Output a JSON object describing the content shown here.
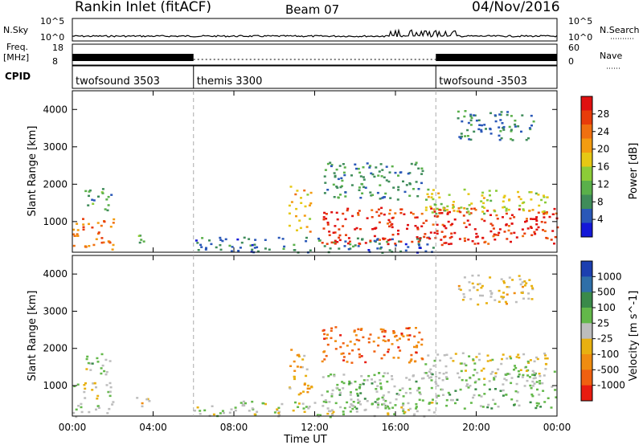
{
  "header": {
    "station": "Rankin Inlet (fitACF)",
    "beam": "Beam 07",
    "date": "04/Nov/2016"
  },
  "strip": {
    "nsky_label": "N.Sky",
    "nsky_ticks": [
      "10^5",
      "10^0"
    ],
    "nsearch_label": "N.Search",
    "nsearch_ticks": [
      "10^5",
      "10^0"
    ],
    "freq_label": "Freq.",
    "freq_unit": "[MHz]",
    "freq_ticks": [
      "18",
      "8"
    ],
    "nave_label": "Nave",
    "nave_ticks": [
      "60",
      "0"
    ],
    "cpid_label": "CPID",
    "cpid_segments": [
      {
        "name": "twofsound 3503",
        "start_hour": 0,
        "end_hour": 6
      },
      {
        "name": "themis 3300",
        "start_hour": 6,
        "end_hour": 18
      },
      {
        "name": "twofsound -3503",
        "start_hour": 18,
        "end_hour": 24
      }
    ]
  },
  "colors": {
    "power": [
      "#1418d8",
      "#2a58b8",
      "#3f8c5a",
      "#5ab04a",
      "#8ccc38",
      "#e6c814",
      "#f39c10",
      "#f07010",
      "#e83c0a",
      "#e01010"
    ],
    "velocity": [
      "#1c3fb0",
      "#2f6fa8",
      "#3a8a4a",
      "#63b84a",
      "#bdbdbd",
      "#e8b010",
      "#f08c10",
      "#f06010",
      "#e81c10"
    ]
  },
  "chart_data": [
    {
      "type": "heatmap",
      "title": "Power",
      "xlabel": "Time UT",
      "ylabel": "Slant Range [km]",
      "xlim": [
        0,
        24
      ],
      "ylim": [
        180,
        4500
      ],
      "x_ticks": [
        "00:00",
        "04:00",
        "08:00",
        "12:00",
        "16:00",
        "20:00",
        "00:00"
      ],
      "y_ticks": [
        1000,
        2000,
        3000,
        4000
      ],
      "colorbar": {
        "label": "Power [dB]",
        "ticks": [
          "28",
          "24",
          "20",
          "16",
          "12",
          "8",
          "4"
        ],
        "range": [
          0,
          30
        ]
      },
      "echo_regions": [
        {
          "t0": 0.0,
          "t1": 2.0,
          "r0": 180,
          "r1": 1100,
          "level": 22
        },
        {
          "t0": 0.6,
          "t1": 1.9,
          "r0": 1300,
          "r1": 1900,
          "level": 9
        },
        {
          "t0": 3.1,
          "t1": 3.8,
          "r0": 300,
          "r1": 700,
          "level": 10
        },
        {
          "t0": 6.0,
          "t1": 18.0,
          "r0": 180,
          "r1": 600,
          "level": 6
        },
        {
          "t0": 10.7,
          "t1": 11.8,
          "r0": 700,
          "r1": 2000,
          "level": 18
        },
        {
          "t0": 12.3,
          "t1": 17.3,
          "r0": 1600,
          "r1": 2600,
          "level": 8
        },
        {
          "t0": 12.3,
          "t1": 24.0,
          "r0": 400,
          "r1": 1400,
          "level": 27
        },
        {
          "t0": 17.3,
          "t1": 23.5,
          "r0": 1200,
          "r1": 1900,
          "level": 15
        },
        {
          "t0": 19.0,
          "t1": 22.8,
          "r0": 3200,
          "r1": 4000,
          "level": 7
        }
      ]
    },
    {
      "type": "heatmap",
      "title": "Velocity",
      "xlabel": "Time UT",
      "ylabel": "Slant Range [km]",
      "xlim": [
        0,
        24
      ],
      "ylim": [
        180,
        4500
      ],
      "x_ticks": [
        "00:00",
        "04:00",
        "08:00",
        "12:00",
        "16:00",
        "20:00",
        "00:00"
      ],
      "y_ticks": [
        1000,
        2000,
        3000,
        4000
      ],
      "colorbar": {
        "label": "Velocity [m s^-1]",
        "ticks": [
          "1000",
          "500",
          "100",
          "25",
          "-25",
          "-100",
          "-500",
          "-1000"
        ],
        "range": [
          -1000,
          1000
        ]
      },
      "echo_regions": [
        {
          "t0": 0.0,
          "t1": 2.0,
          "r0": 180,
          "r1": 1100,
          "level": 40
        },
        {
          "t0": 0.6,
          "t1": 1.9,
          "r0": 1300,
          "r1": 1900,
          "level": 120
        },
        {
          "t0": 3.1,
          "t1": 3.8,
          "r0": 300,
          "r1": 700,
          "level": -150
        },
        {
          "t0": 6.0,
          "t1": 18.0,
          "r0": 180,
          "r1": 600,
          "level": 60
        },
        {
          "t0": 10.7,
          "t1": 11.8,
          "r0": 700,
          "r1": 2000,
          "level": -300
        },
        {
          "t0": 12.3,
          "t1": 17.3,
          "r0": 1600,
          "r1": 2600,
          "level": -600
        },
        {
          "t0": 12.3,
          "t1": 24.0,
          "r0": 400,
          "r1": 1400,
          "level": 150
        },
        {
          "t0": 17.3,
          "t1": 23.5,
          "r0": 1200,
          "r1": 1900,
          "level": 0
        },
        {
          "t0": 19.0,
          "t1": 22.8,
          "r0": 3200,
          "r1": 4000,
          "level": -150
        }
      ]
    }
  ]
}
